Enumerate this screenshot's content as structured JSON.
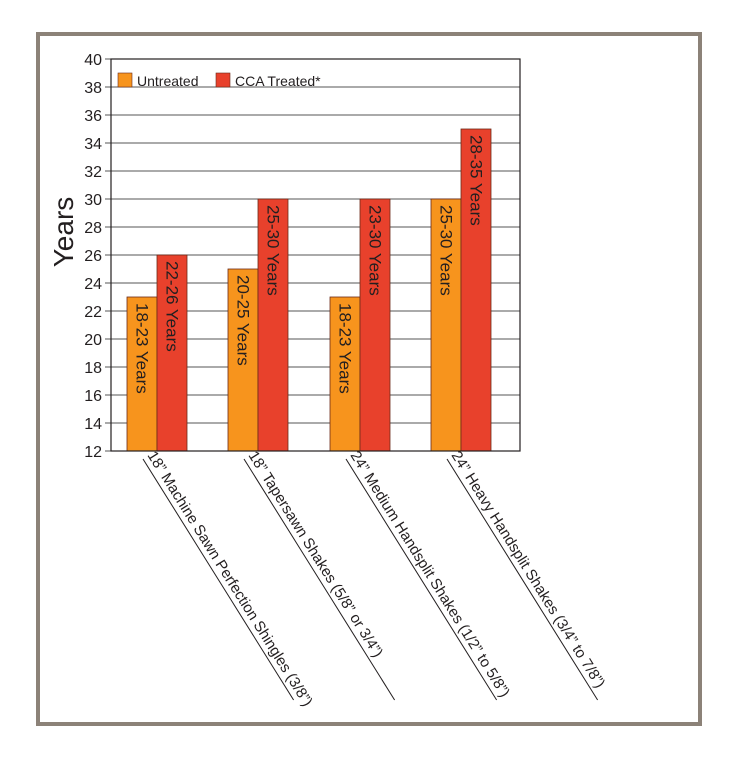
{
  "chart_data": {
    "type": "bar",
    "title": "",
    "xlabel": "",
    "ylabel": "Years",
    "ylim": [
      12,
      40
    ],
    "yticks": [
      12,
      14,
      16,
      18,
      20,
      22,
      24,
      26,
      28,
      30,
      32,
      34,
      36,
      38,
      40
    ],
    "grid": true,
    "legend_position": "top-left",
    "categories": [
      "18” Machine Sawn Perfection Shingles (3/8”)",
      "18” Tapersawn Shakes (5/8” or 3/4”)",
      "24” Medium Handsplit Shakes (1/2” to 5/8”)",
      "24” Heavy Handsplit Shakes (3/4” to 7/8”)"
    ],
    "series": [
      {
        "name": "Untreated",
        "color": "#f7941d",
        "values": [
          23,
          25,
          23,
          30
        ],
        "labels": [
          "18-23 Years",
          "20-25 Years",
          "18-23 Years",
          "25-30 Years"
        ]
      },
      {
        "name": "CCA Treated*",
        "color": "#e8412c",
        "values": [
          26,
          30,
          30,
          35
        ],
        "labels": [
          "22-26 Years",
          "25-30 Years",
          "23-30 Years",
          "28-35 Years"
        ]
      }
    ]
  }
}
